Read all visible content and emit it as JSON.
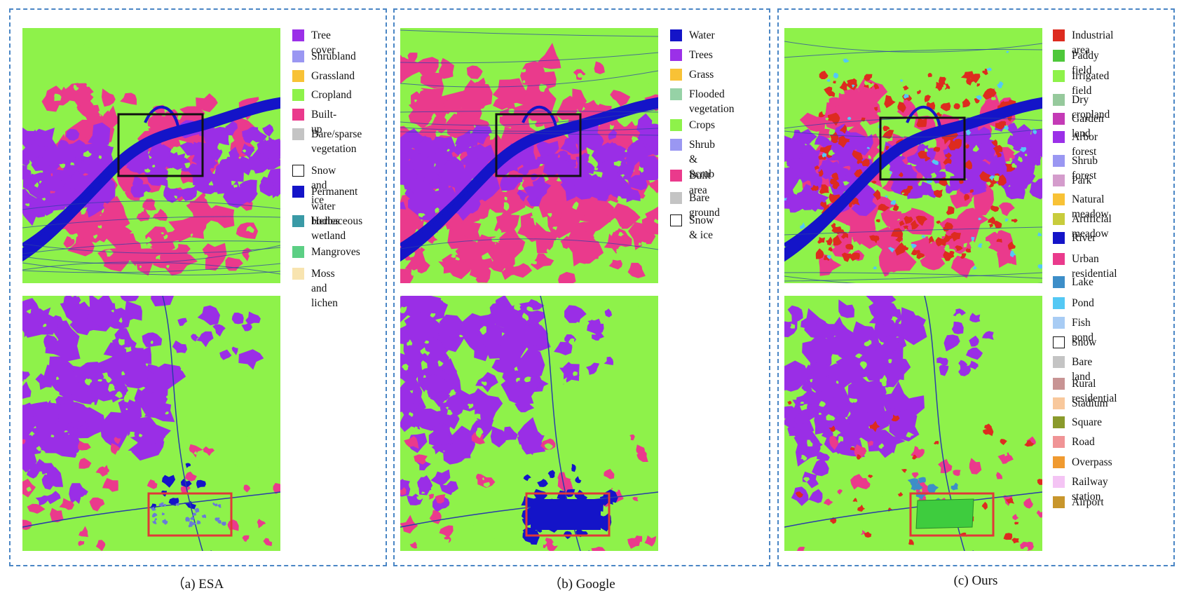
{
  "colors": {
    "cropland": "#8ef24a",
    "built": "#ea3a8c",
    "tree": "#9a2ee6",
    "water": "#1414c8",
    "industrial": "#dd2b1f",
    "paddy": "#3ecc3e",
    "box_black": "#111111",
    "box_red": "#e03838",
    "panel_border": "#4a86c5"
  },
  "panels": [
    {
      "caption": "（a) ESA",
      "legend": [
        {
          "label": "Tree cover",
          "color": "#9b30e8"
        },
        {
          "label": "Shrubland",
          "color": "#9a97f2"
        },
        {
          "label": "Grassland",
          "color": "#f8c236"
        },
        {
          "label": "Cropland",
          "color": "#8ef24a"
        },
        {
          "label": "Built-up",
          "color": "#ea3a8c"
        },
        {
          "label": "Bare/sparse\nvegetation",
          "color": "#c4c4c4"
        },
        {
          "label": "Snow and ice",
          "color": "outline"
        },
        {
          "label": "Permanent\nwater bodies",
          "color": "#1414c8"
        },
        {
          "label": "Herbaceous\nwetland",
          "color": "#3a9aa6"
        },
        {
          "label": "Mangroves",
          "color": "#5ccf84"
        },
        {
          "label": "Moss and\nlichen",
          "color": "#f8e4b0"
        }
      ]
    },
    {
      "caption": "（b) Google",
      "legend": [
        {
          "label": "Water",
          "color": "#1414c8"
        },
        {
          "label": "Trees",
          "color": "#9b30e8"
        },
        {
          "label": "Grass",
          "color": "#f8c236"
        },
        {
          "label": "Flooded\nvegetation",
          "color": "#96d2a6"
        },
        {
          "label": "Crops",
          "color": "#8ef24a"
        },
        {
          "label": "Shrub &\nScrub",
          "color": "#9a97f2"
        },
        {
          "label": "Built area",
          "color": "#ea3a8c"
        },
        {
          "label": "Bare ground",
          "color": "#c4c4c4"
        },
        {
          "label": "Snow & ice",
          "color": "outline"
        }
      ]
    },
    {
      "caption": "(c) Ours",
      "legend": [
        {
          "label": "Industrial area",
          "color": "#dd2b1f"
        },
        {
          "label": "Paddy field",
          "color": "#4ec83a"
        },
        {
          "label": "Irrigated field",
          "color": "#8ef24a"
        },
        {
          "label": "Dry cropland",
          "color": "#96c99c"
        },
        {
          "label": "Garden land",
          "color": "#c43ab6"
        },
        {
          "label": "Arbor forest",
          "color": "#9b30e8"
        },
        {
          "label": "Shrub forest",
          "color": "#9a97f2"
        },
        {
          "label": "Park",
          "color": "#d49ccc"
        },
        {
          "label": "Natural meadow",
          "color": "#f8c236"
        },
        {
          "label": "Artificial meadow",
          "color": "#c8cc3c"
        },
        {
          "label": "River",
          "color": "#1414c8"
        },
        {
          "label": "Urban residential",
          "color": "#ea3a8c"
        },
        {
          "label": "Lake",
          "color": "#3d8ec8"
        },
        {
          "label": "Pond",
          "color": "#54c8f4"
        },
        {
          "label": "Fish pond",
          "color": "#a8ccf4"
        },
        {
          "label": "Snow",
          "color": "outline"
        },
        {
          "label": "Bare land",
          "color": "#c4c4c4"
        },
        {
          "label": "Rural residential",
          "color": "#c89494"
        },
        {
          "label": "Stadium",
          "color": "#f8c89c"
        },
        {
          "label": "Square",
          "color": "#8a9a2c"
        },
        {
          "label": "Road",
          "color": "#f09496"
        },
        {
          "label": "Overpass",
          "color": "#f09a30"
        },
        {
          "label": "Railway station",
          "color": "#f4c4f4"
        },
        {
          "label": "Airport",
          "color": "#c8962c"
        }
      ]
    }
  ]
}
